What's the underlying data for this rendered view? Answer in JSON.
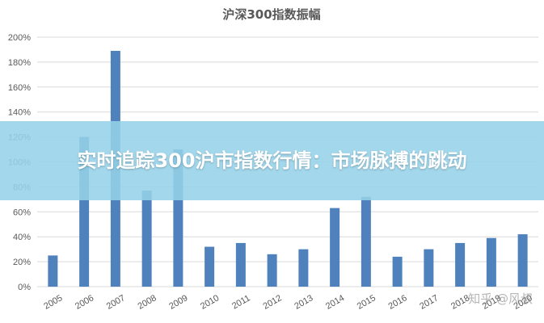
{
  "overlay": {
    "headline": "实时追踪300沪市指数行情：市场脉搏的跳动"
  },
  "watermark": {
    "text": "知乎 @风叔"
  },
  "colors": {
    "bar": "#4f81bd",
    "overlay": "#96d2e8"
  },
  "chart_data": {
    "type": "bar",
    "title": "沪深300指数振幅",
    "xlabel": "",
    "ylabel": "",
    "ylim": [
      0,
      200
    ],
    "yticks": [
      "0%",
      "20%",
      "40%",
      "60%",
      "80%",
      "100%",
      "120%",
      "140%",
      "160%",
      "180%",
      "200%"
    ],
    "grid": true,
    "categories": [
      "2005",
      "2006",
      "2007",
      "2008",
      "2009",
      "2010",
      "2011",
      "2012",
      "2013",
      "2014",
      "2015",
      "2016",
      "2017",
      "2018",
      "2019",
      "2020"
    ],
    "values": [
      25,
      120,
      189,
      77,
      110,
      32,
      35,
      26,
      30,
      63,
      72,
      24,
      30,
      35,
      39,
      42
    ]
  }
}
